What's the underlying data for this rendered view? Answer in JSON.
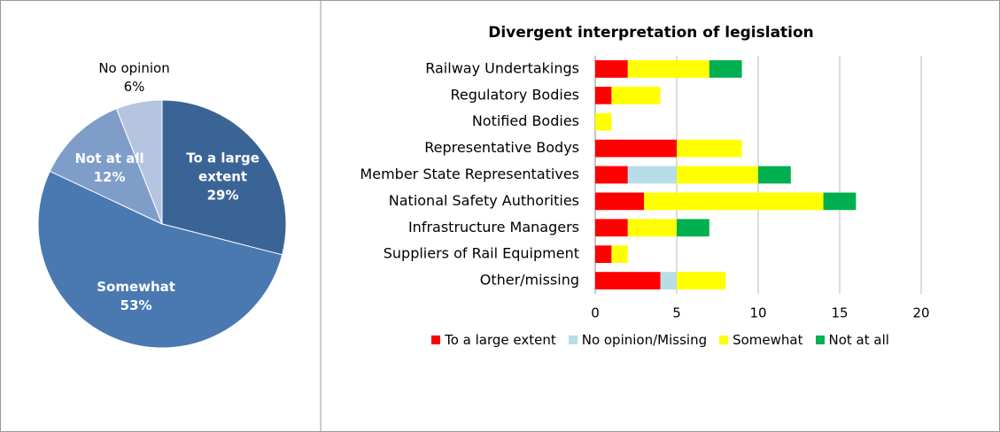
{
  "chart_data": [
    {
      "type": "pie",
      "categories": [
        "To a large extent",
        "Somewhat",
        "Not at all",
        "No opinion"
      ],
      "values": [
        29,
        53,
        12,
        6
      ],
      "value_labels": [
        "29%",
        "53%",
        "12%",
        "6%"
      ],
      "colors": [
        "#3b6496",
        "#4a79b2",
        "#7f9dc9",
        "#b5c5e0"
      ]
    },
    {
      "type": "bar",
      "orientation": "horizontal",
      "stacked": true,
      "title": "Divergent interpretation of legislation",
      "categories": [
        "Railway Undertakings",
        "Regulatory Bodies",
        "Notified Bodies",
        "Representative Bodys",
        "Member State Representatives",
        "National Safety Authorities",
        "Infrastructure Managers",
        "Suppliers of Rail Equipment",
        "Other/missing"
      ],
      "series": [
        {
          "name": "To a large extent",
          "color": "#ff0000",
          "values": [
            2,
            1,
            0,
            5,
            2,
            3,
            2,
            1,
            4
          ]
        },
        {
          "name": "No opinion/Missing",
          "color": "#b7dde8",
          "values": [
            0,
            0,
            0,
            0,
            3,
            0,
            0,
            0,
            1
          ]
        },
        {
          "name": "Somewhat",
          "color": "#ffff00",
          "values": [
            5,
            3,
            1,
            4,
            5,
            11,
            3,
            1,
            3
          ]
        },
        {
          "name": "Not at all",
          "color": "#00b050",
          "values": [
            2,
            0,
            0,
            0,
            2,
            2,
            2,
            0,
            0
          ]
        }
      ],
      "xlim": [
        0,
        20
      ],
      "xticks": [
        0,
        5,
        10,
        15,
        20
      ],
      "grid": true,
      "legend": "bottom"
    }
  ]
}
